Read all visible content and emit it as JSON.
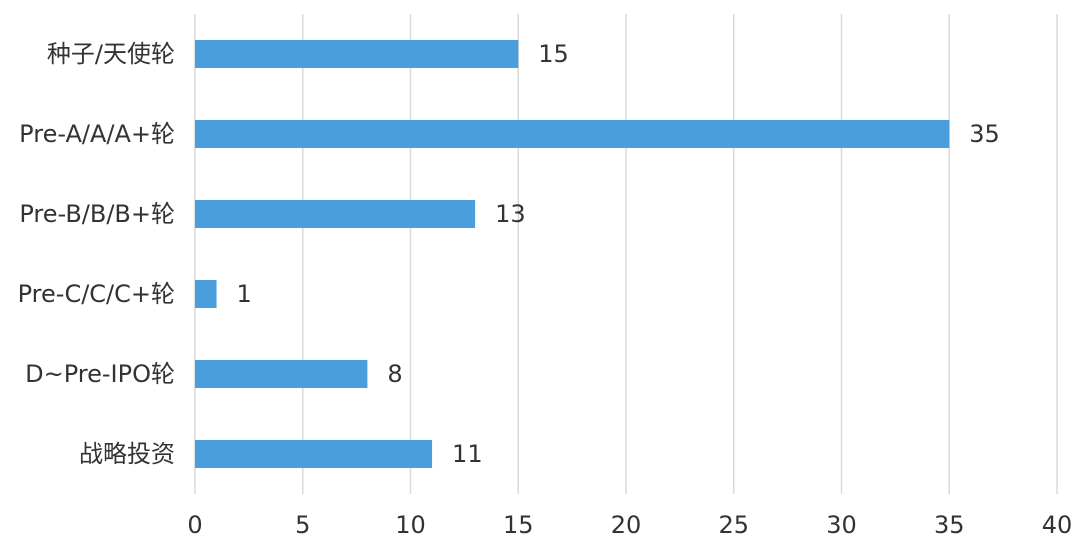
{
  "chart_data": {
    "type": "bar",
    "orientation": "horizontal",
    "categories": [
      "种子/天使轮",
      "Pre-A/A/A+轮",
      "Pre-B/B/B+轮",
      "Pre-C/C/C+轮",
      "D~Pre-IPO轮",
      "战略投资"
    ],
    "values": [
      15,
      35,
      13,
      1,
      8,
      11
    ],
    "color": "#4a9edb",
    "xlim": [
      0,
      40
    ],
    "xticks": [
      0,
      5,
      10,
      15,
      20,
      25,
      30,
      35,
      40
    ],
    "grid": true
  }
}
